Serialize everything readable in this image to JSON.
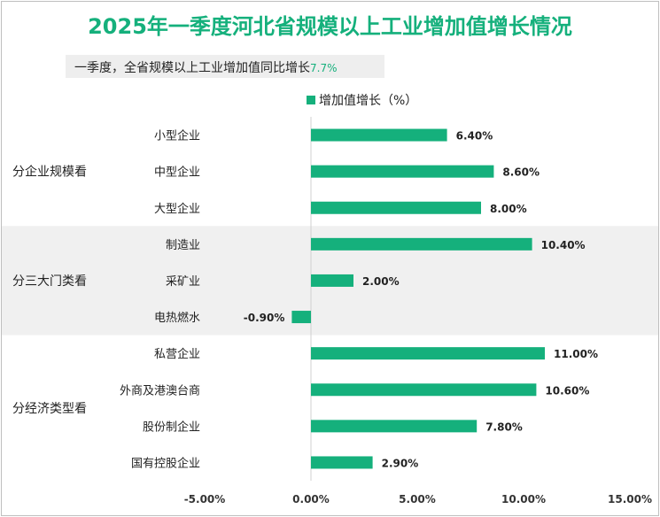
{
  "title": "2025年一季度河北省规模以上工业增加值增长情况",
  "subtitle": {
    "text": "一季度，全省规模以上工业增加值同比增长",
    "value": "7.7%"
  },
  "colors": {
    "bar": "#15b07c",
    "title": "#15b07c",
    "band": "#f0f0f0"
  },
  "chart_data": {
    "type": "bar",
    "orientation": "horizontal",
    "legend": "增加值增长（%）",
    "legend_position": "top",
    "grid": false,
    "xlim": [
      -5,
      15
    ],
    "ticks": [
      "-5.00%",
      "0.00%",
      "5.00%",
      "10.00%",
      "15.00%"
    ],
    "groups": [
      {
        "label": "分企业规模看",
        "items": [
          {
            "category": "小型企业",
            "value": 6.4,
            "label": "6.40%"
          },
          {
            "category": "中型企业",
            "value": 8.6,
            "label": "8.60%"
          },
          {
            "category": "大型企业",
            "value": 8.0,
            "label": "8.00%"
          }
        ]
      },
      {
        "label": "分三大门类看",
        "items": [
          {
            "category": "制造业",
            "value": 10.4,
            "label": "10.40%"
          },
          {
            "category": "采矿业",
            "value": 2.0,
            "label": "2.00%"
          },
          {
            "category": "电热燃水",
            "value": -0.9,
            "label": "-0.90%"
          }
        ]
      },
      {
        "label": "分经济类型看",
        "items": [
          {
            "category": "私营企业",
            "value": 11.0,
            "label": "11.00%"
          },
          {
            "category": "外商及港澳台商",
            "value": 10.6,
            "label": "10.60%"
          },
          {
            "category": "股份制企业",
            "value": 7.8,
            "label": "7.80%"
          },
          {
            "category": "国有控股企业",
            "value": 2.9,
            "label": "2.90%"
          }
        ]
      }
    ]
  }
}
